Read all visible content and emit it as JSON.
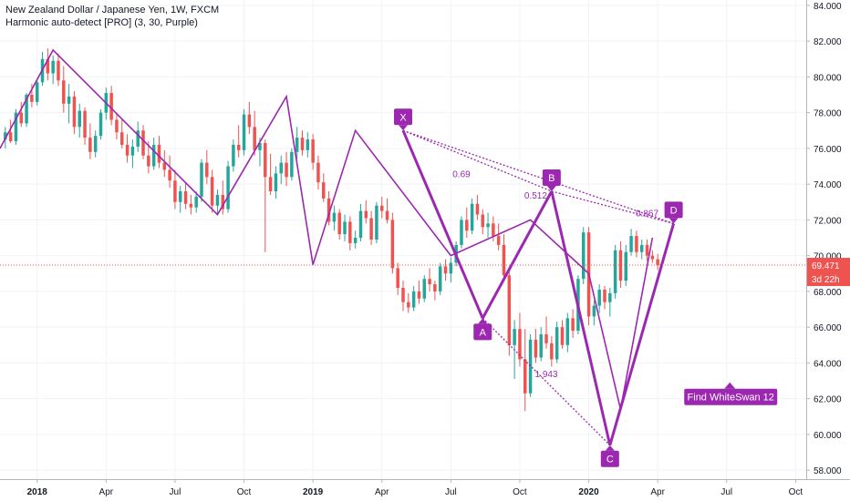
{
  "header": {
    "title": "New Zealand Dollar / Japanese Yen, 1W, FXCM",
    "indicator": "Harmonic auto-detect [PRO] (3, 30, Purple)"
  },
  "colors": {
    "up": "#26a69a",
    "down": "#ef5350",
    "pattern": "#9c27b0",
    "price_line": "#ef5350"
  },
  "chart_data": {
    "type": "candlestick",
    "title": "New Zealand Dollar / Japanese Yen, 1W, FXCM",
    "y_ticks": [
      "84.000",
      "82.000",
      "80.000",
      "78.000",
      "76.000",
      "74.000",
      "72.000",
      "70.000",
      "68.000",
      "66.000",
      "64.000",
      "62.000",
      "60.000",
      "58.000"
    ],
    "ylim": [
      57.5,
      84.3
    ],
    "x_ticks": [
      {
        "t": 0,
        "label": "2018"
      },
      {
        "t": 13,
        "label": "Apr"
      },
      {
        "t": 26,
        "label": "Jul"
      },
      {
        "t": 39,
        "label": "Oct"
      },
      {
        "t": 52,
        "label": "2019"
      },
      {
        "t": 65,
        "label": "Apr"
      },
      {
        "t": 78,
        "label": "Jul"
      },
      {
        "t": 91,
        "label": "Oct"
      },
      {
        "t": 104,
        "label": "2020"
      },
      {
        "t": 117,
        "label": "Apr"
      },
      {
        "t": 130,
        "label": "Jul"
      },
      {
        "t": 143,
        "label": "Oct"
      }
    ],
    "xlim": [
      -7,
      145
    ],
    "last_price": {
      "value": 69.471,
      "label": "69.471",
      "countdown": "3d 22h"
    },
    "trend_lines": [
      [
        [
          -7,
          76.0
        ],
        [
          3,
          81.5
        ],
        [
          34,
          72.3
        ],
        [
          47,
          78.9
        ],
        [
          52,
          69.5
        ],
        [
          60,
          77.0
        ],
        [
          78,
          70.0
        ],
        [
          93,
          72.0
        ],
        [
          104,
          69.0
        ],
        [
          110,
          61.4
        ],
        [
          116,
          71.0
        ]
      ]
    ],
    "candles": [
      [
        -6,
        76.5,
        77.2,
        76.0,
        76.9
      ],
      [
        -5,
        76.9,
        77.6,
        76.3,
        76.4
      ],
      [
        -4,
        76.4,
        78.2,
        76.2,
        78.0
      ],
      [
        -3,
        78.0,
        78.6,
        77.2,
        77.4
      ],
      [
        -2,
        77.4,
        79.1,
        77.2,
        79.0
      ],
      [
        -1,
        79.0,
        79.6,
        78.3,
        78.6
      ],
      [
        0,
        78.6,
        79.9,
        78.4,
        79.7
      ],
      [
        1,
        79.7,
        81.4,
        79.5,
        81.0
      ],
      [
        2,
        81.0,
        81.6,
        79.8,
        80.2
      ],
      [
        3,
        80.2,
        81.2,
        79.6,
        80.9
      ],
      [
        4,
        80.9,
        81.3,
        79.5,
        79.8
      ],
      [
        5,
        79.8,
        80.6,
        78.0,
        78.5
      ],
      [
        6,
        78.5,
        79.6,
        77.4,
        78.9
      ],
      [
        7,
        78.9,
        79.2,
        76.8,
        77.2
      ],
      [
        8,
        77.2,
        78.5,
        76.6,
        78.1
      ],
      [
        9,
        78.1,
        78.3,
        76.2,
        76.6
      ],
      [
        10,
        76.6,
        77.4,
        75.4,
        75.8
      ],
      [
        11,
        75.8,
        77.0,
        75.5,
        76.7
      ],
      [
        12,
        76.7,
        78.2,
        76.5,
        78.0
      ],
      [
        13,
        78.0,
        79.4,
        77.6,
        79.1
      ],
      [
        14,
        79.1,
        79.5,
        77.3,
        77.6
      ],
      [
        15,
        77.6,
        78.0,
        76.5,
        76.9
      ],
      [
        16,
        76.9,
        77.6,
        76.0,
        76.2
      ],
      [
        17,
        76.2,
        76.8,
        75.2,
        75.6
      ],
      [
        18,
        75.6,
        76.5,
        74.9,
        76.1
      ],
      [
        19,
        76.1,
        77.5,
        75.8,
        77.0
      ],
      [
        20,
        77.0,
        77.3,
        75.4,
        75.6
      ],
      [
        21,
        75.6,
        76.4,
        74.6,
        75.0
      ],
      [
        22,
        75.0,
        76.6,
        74.8,
        76.2
      ],
      [
        23,
        76.2,
        76.7,
        74.9,
        75.2
      ],
      [
        24,
        75.2,
        75.9,
        74.4,
        74.8
      ],
      [
        25,
        74.8,
        75.6,
        73.8,
        74.2
      ],
      [
        26,
        74.2,
        74.8,
        72.6,
        73.0
      ],
      [
        27,
        73.0,
        73.9,
        72.4,
        73.6
      ],
      [
        28,
        73.6,
        74.1,
        72.6,
        72.9
      ],
      [
        29,
        72.9,
        73.4,
        72.3,
        72.7
      ],
      [
        30,
        72.7,
        73.6,
        72.4,
        73.3
      ],
      [
        31,
        73.3,
        75.4,
        73.0,
        75.2
      ],
      [
        32,
        75.2,
        75.9,
        74.0,
        74.4
      ],
      [
        33,
        74.4,
        74.8,
        72.4,
        72.8
      ],
      [
        34,
        72.8,
        73.7,
        72.3,
        73.4
      ],
      [
        35,
        73.4,
        74.2,
        72.3,
        72.6
      ],
      [
        36,
        72.6,
        75.3,
        72.4,
        75.0
      ],
      [
        37,
        75.0,
        76.5,
        74.7,
        76.2
      ],
      [
        38,
        76.2,
        77.3,
        75.5,
        75.9
      ],
      [
        39,
        75.9,
        78.2,
        75.6,
        77.9
      ],
      [
        40,
        77.9,
        78.6,
        76.8,
        77.2
      ],
      [
        41,
        77.2,
        78.1,
        75.6,
        75.9
      ],
      [
        42,
        75.9,
        76.6,
        75.0,
        76.3
      ],
      [
        43,
        76.3,
        76.5,
        70.2,
        74.4
      ],
      [
        44,
        74.4,
        75.7,
        73.4,
        73.6
      ],
      [
        45,
        73.6,
        75.0,
        73.2,
        74.6
      ],
      [
        46,
        74.6,
        75.6,
        74.0,
        75.2
      ],
      [
        47,
        75.2,
        75.8,
        73.9,
        74.4
      ],
      [
        48,
        74.4,
        76.0,
        74.2,
        75.8
      ],
      [
        49,
        75.8,
        77.2,
        75.4,
        76.6
      ],
      [
        50,
        76.6,
        77.0,
        75.6,
        75.9
      ],
      [
        51,
        75.9,
        76.9,
        75.5,
        76.5
      ],
      [
        52,
        76.5,
        76.8,
        74.8,
        75.2
      ],
      [
        53,
        75.2,
        75.6,
        73.7,
        74.1
      ],
      [
        54,
        74.1,
        74.6,
        73.0,
        73.2
      ],
      [
        55,
        73.2,
        73.6,
        71.7,
        71.9
      ],
      [
        56,
        71.9,
        72.8,
        71.4,
        72.4
      ],
      [
        57,
        72.4,
        72.6,
        70.9,
        71.2
      ],
      [
        58,
        71.2,
        72.3,
        70.8,
        71.9
      ],
      [
        59,
        71.9,
        72.2,
        70.3,
        70.7
      ],
      [
        60,
        70.7,
        71.4,
        70.4,
        71.0
      ],
      [
        61,
        71.0,
        72.9,
        70.8,
        72.5
      ],
      [
        62,
        72.5,
        73.1,
        71.8,
        72.1
      ],
      [
        63,
        72.1,
        72.5,
        70.6,
        70.9
      ],
      [
        64,
        70.9,
        73.0,
        70.7,
        72.8
      ],
      [
        65,
        72.8,
        73.3,
        72.1,
        72.5
      ],
      [
        66,
        72.5,
        73.2,
        71.8,
        72.0
      ],
      [
        67,
        72.0,
        72.4,
        69.0,
        69.3
      ],
      [
        68,
        69.3,
        69.6,
        67.8,
        68.2
      ],
      [
        69,
        68.2,
        68.6,
        66.9,
        67.4
      ],
      [
        70,
        67.4,
        67.9,
        66.8,
        67.1
      ],
      [
        71,
        67.1,
        68.3,
        66.9,
        68.0
      ],
      [
        72,
        68.0,
        68.6,
        67.3,
        67.6
      ],
      [
        73,
        67.6,
        68.9,
        67.4,
        68.7
      ],
      [
        74,
        68.7,
        69.3,
        68.0,
        68.4
      ],
      [
        75,
        68.4,
        68.6,
        67.5,
        68.0
      ],
      [
        76,
        68.0,
        69.6,
        67.8,
        69.4
      ],
      [
        77,
        69.4,
        69.8,
        68.6,
        69.0
      ],
      [
        78,
        69.0,
        69.9,
        68.5,
        69.6
      ],
      [
        79,
        69.6,
        70.8,
        69.4,
        70.6
      ],
      [
        80,
        70.6,
        72.2,
        70.4,
        72.0
      ],
      [
        81,
        72.0,
        72.7,
        71.0,
        71.4
      ],
      [
        82,
        71.4,
        73.2,
        71.2,
        72.9
      ],
      [
        83,
        72.9,
        73.4,
        72.0,
        72.3
      ],
      [
        84,
        72.3,
        72.6,
        71.2,
        71.6
      ],
      [
        85,
        71.6,
        72.4,
        71.0,
        71.8
      ],
      [
        86,
        71.8,
        72.2,
        70.8,
        71.1
      ],
      [
        87,
        71.1,
        71.8,
        70.3,
        70.6
      ],
      [
        88,
        70.6,
        71.2,
        68.6,
        68.9
      ],
      [
        89,
        68.9,
        69.2,
        64.4,
        65.0
      ],
      [
        90,
        65.0,
        66.4,
        63.1,
        65.9
      ],
      [
        91,
        65.9,
        66.8,
        63.8,
        64.2
      ],
      [
        92,
        64.2,
        65.9,
        61.3,
        62.3
      ],
      [
        93,
        62.3,
        65.6,
        62.1,
        65.3
      ],
      [
        94,
        65.3,
        65.9,
        64.0,
        64.3
      ],
      [
        95,
        64.3,
        66.0,
        64.1,
        65.6
      ],
      [
        96,
        65.6,
        66.6,
        64.8,
        65.1
      ],
      [
        97,
        65.1,
        65.5,
        63.8,
        64.2
      ],
      [
        98,
        64.2,
        66.3,
        64.0,
        66.0
      ],
      [
        99,
        66.0,
        66.4,
        64.8,
        65.0
      ],
      [
        100,
        65.0,
        66.8,
        64.6,
        66.5
      ],
      [
        101,
        66.5,
        67.0,
        65.4,
        65.8
      ],
      [
        102,
        65.8,
        68.9,
        65.6,
        68.7
      ],
      [
        103,
        68.7,
        71.6,
        68.4,
        71.3
      ],
      [
        104,
        71.3,
        71.6,
        66.1,
        66.6
      ],
      [
        105,
        66.6,
        67.5,
        66.1,
        67.2
      ],
      [
        106,
        67.2,
        68.4,
        66.8,
        68.1
      ],
      [
        107,
        68.1,
        68.3,
        67.0,
        67.4
      ],
      [
        108,
        67.4,
        68.2,
        66.6,
        67.9
      ],
      [
        109,
        67.9,
        70.6,
        67.6,
        70.3
      ],
      [
        110,
        70.3,
        70.8,
        68.2,
        68.6
      ],
      [
        111,
        68.6,
        70.6,
        68.3,
        70.2
      ],
      [
        112,
        70.2,
        71.5,
        70.0,
        71.1
      ],
      [
        113,
        71.1,
        71.4,
        69.9,
        70.2
      ],
      [
        114,
        70.2,
        70.9,
        69.8,
        70.6
      ],
      [
        115,
        70.6,
        70.9,
        69.7,
        70.0
      ],
      [
        116,
        70.0,
        70.3,
        69.6,
        69.8
      ],
      [
        117,
        69.8,
        70.1,
        69.2,
        69.47
      ]
    ],
    "harmonic_pattern": {
      "points": [
        {
          "label": "X",
          "t": 69,
          "y": 77.0
        },
        {
          "label": "A",
          "t": 84,
          "y": 66.5
        },
        {
          "label": "B",
          "t": 97,
          "y": 73.6
        },
        {
          "label": "C",
          "t": 108,
          "y": 59.4
        },
        {
          "label": "D",
          "t": 120,
          "y": 71.8
        }
      ],
      "ratios": [
        {
          "label": "0.69",
          "t": 80,
          "y": 74.4
        },
        {
          "label": "0.512",
          "t": 94,
          "y": 73.2
        },
        {
          "label": "0.867",
          "t": 115,
          "y": 72.2
        },
        {
          "label": "1.943",
          "t": 96,
          "y": 63.2
        }
      ],
      "note": "Find WhiteSwan 12"
    }
  }
}
